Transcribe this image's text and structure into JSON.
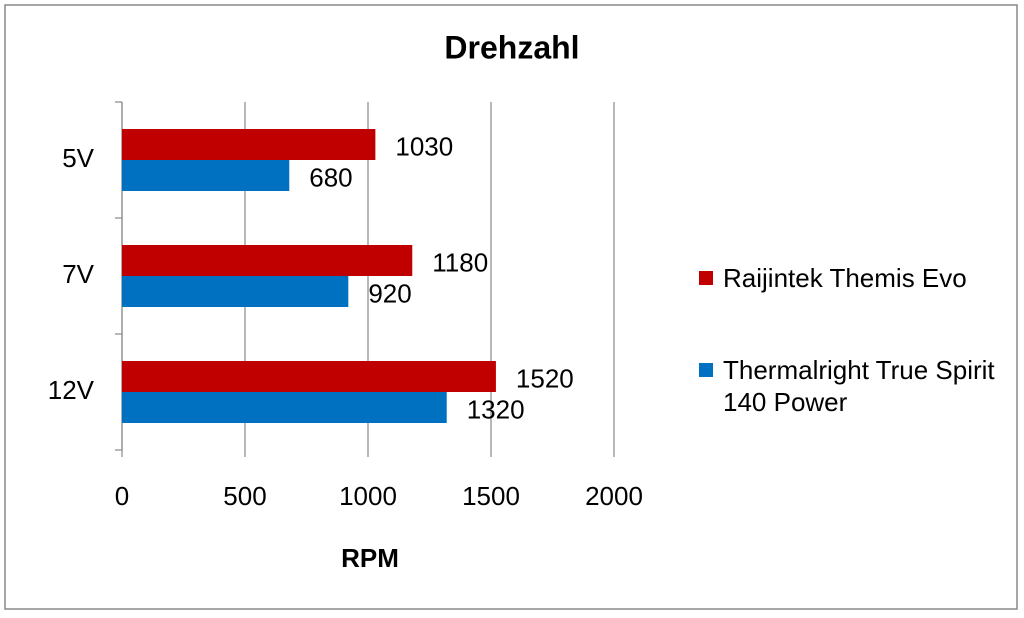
{
  "chart_data": {
    "type": "hbar",
    "title": "Drehzahl",
    "x_label": "RPM",
    "categories": [
      "5V",
      "7V",
      "12V"
    ],
    "series": [
      {
        "name": "Raijintek Themis Evo",
        "color": "#c00000",
        "values": [
          1030,
          1180,
          1520
        ]
      },
      {
        "name": "Thermalright True Spirit 140 Power",
        "color": "#0070c0",
        "values": [
          680,
          920,
          1320
        ]
      }
    ],
    "xlim": [
      0,
      2000
    ],
    "xticks": [
      0,
      500,
      1000,
      1500,
      2000
    ],
    "grid": true,
    "legend": "right"
  }
}
